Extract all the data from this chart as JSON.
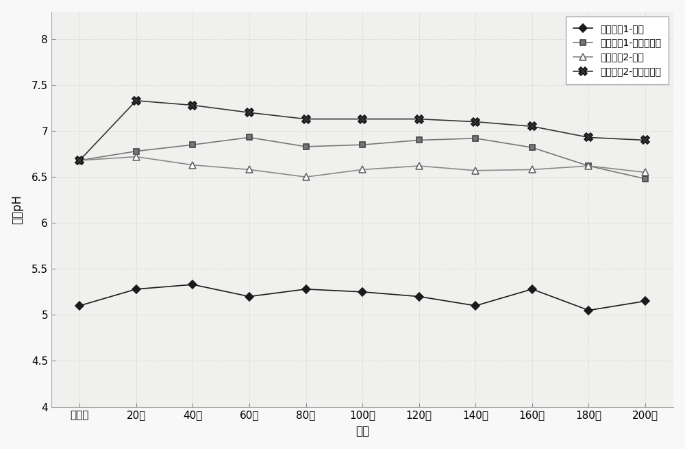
{
  "x_labels": [
    "培养前",
    "20天",
    "40天",
    "60天",
    "80天",
    "100天",
    "120天",
    "140天",
    "160天",
    "180天",
    "200天"
  ],
  "x_values": [
    0,
    1,
    2,
    3,
    4,
    5,
    6,
    7,
    8,
    9,
    10
  ],
  "series": [
    {
      "label": "污染土壤1-对照",
      "values": [
        5.1,
        5.28,
        5.33,
        5.2,
        5.28,
        5.25,
        5.2,
        5.1,
        5.28,
        5.05,
        5.15
      ],
      "color": "#1a1a1a",
      "marker": "D",
      "markersize": 6,
      "markerfacecolor": "#1a1a1a",
      "markeredgecolor": "#1a1a1a",
      "linestyle": "-",
      "linewidth": 1.2
    },
    {
      "label": "污染土壤1-钝化修复剂",
      "values": [
        6.68,
        6.78,
        6.85,
        6.93,
        6.83,
        6.85,
        6.9,
        6.92,
        6.82,
        6.62,
        6.48
      ],
      "color": "#777777",
      "marker": "s",
      "markersize": 6,
      "markerfacecolor": "#777777",
      "markeredgecolor": "#444444",
      "linestyle": "-",
      "linewidth": 1.2
    },
    {
      "label": "污染土壤2-对照",
      "values": [
        6.68,
        6.72,
        6.63,
        6.58,
        6.5,
        6.58,
        6.62,
        6.57,
        6.58,
        6.62,
        6.55
      ],
      "color": "#888888",
      "marker": "^",
      "markersize": 7,
      "markerfacecolor": "white",
      "markeredgecolor": "#666666",
      "linestyle": "-",
      "linewidth": 1.2
    },
    {
      "label": "污染土壤2-钝化修复剂",
      "values": [
        6.68,
        7.33,
        7.28,
        7.2,
        7.13,
        7.13,
        7.13,
        7.1,
        7.05,
        6.93,
        6.9
      ],
      "color": "#333333",
      "marker": "X",
      "markersize": 8,
      "markerfacecolor": "#333333",
      "markeredgecolor": "#111111",
      "linestyle": "-",
      "linewidth": 1.2
    }
  ],
  "xlabel": "时间",
  "ylabel": "土壤pH",
  "ylim": [
    4.0,
    8.3
  ],
  "yticks": [
    4.0,
    4.5,
    5.0,
    5.5,
    6.0,
    6.5,
    7.0,
    7.5,
    8.0
  ],
  "ytick_labels": [
    "4",
    "4.5",
    "5",
    "5.5",
    "6",
    "6.5",
    "7",
    "7.5",
    "8"
  ],
  "legend_loc": "upper right",
  "figsize": [
    10.0,
    6.55
  ],
  "dpi": 100,
  "bg_color": "#f8f8f8",
  "plot_bg_color": "#f0f0ee"
}
